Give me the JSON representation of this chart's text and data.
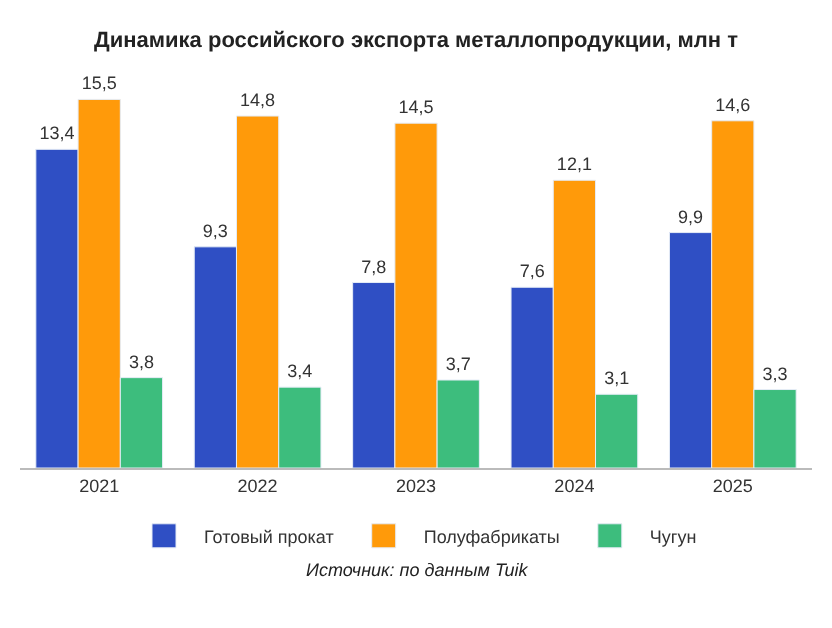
{
  "chart_data": {
    "type": "bar",
    "title": "Динамика российского экспорта металлопродукции, млн т",
    "categories": [
      "2021",
      "2022",
      "2023",
      "2024",
      "2025"
    ],
    "series": [
      {
        "name": "Готовый прокат",
        "color": "#2f4fc4",
        "values": [
          13.4,
          9.3,
          7.8,
          7.6,
          9.9
        ],
        "value_labels": [
          "13,4",
          "9,3",
          "7,8",
          "7,6",
          "9,9"
        ]
      },
      {
        "name": "Полуфабрикаты",
        "color": "#ff9a0a",
        "values": [
          15.5,
          14.8,
          14.5,
          12.1,
          14.6
        ],
        "value_labels": [
          "15,5",
          "14,8",
          "14,5",
          "12,1",
          "14,6"
        ]
      },
      {
        "name": "Чугун",
        "color": "#3dbd7d",
        "values": [
          3.8,
          3.4,
          3.7,
          3.1,
          3.3
        ],
        "value_labels": [
          "3,8",
          "3,4",
          "3,7",
          "3,1",
          "3,3"
        ]
      }
    ],
    "tick_labels": "x",
    "legend": "bottom",
    "annotations": [
      "Источник: по данным Tuik"
    ]
  }
}
